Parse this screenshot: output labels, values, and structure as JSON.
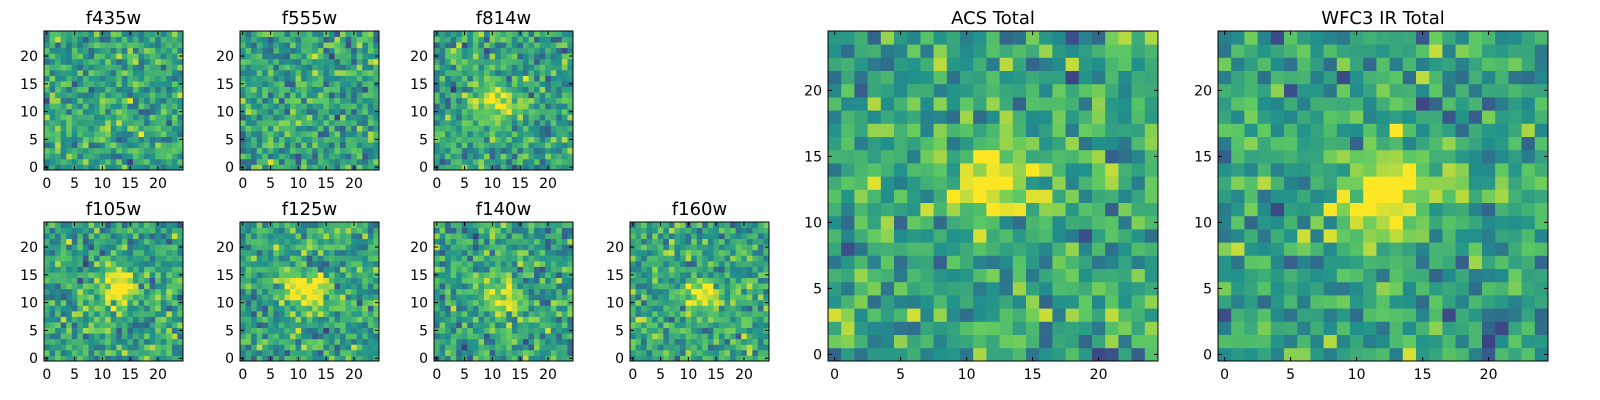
{
  "figure": {
    "colormap": [
      "#440154",
      "#3b528b",
      "#21918c",
      "#5ec962",
      "#fde725"
    ],
    "border_color": "#000000",
    "background": "#ffffff"
  },
  "chart_data": [
    {
      "type": "heatmap",
      "title": "f435w",
      "grid": [
        25,
        25
      ],
      "xlim": [
        0,
        24
      ],
      "ylim": [
        0,
        24
      ],
      "xticks": [
        0,
        5,
        10,
        15,
        20
      ],
      "yticks": [
        0,
        5,
        10,
        15,
        20
      ],
      "source_peak": [
        12,
        12
      ],
      "source_strength": 0.05,
      "seed": 11
    },
    {
      "type": "heatmap",
      "title": "f555w",
      "grid": [
        25,
        25
      ],
      "xlim": [
        0,
        24
      ],
      "ylim": [
        0,
        24
      ],
      "xticks": [
        0,
        5,
        10,
        15,
        20
      ],
      "yticks": [
        0,
        5,
        10,
        15,
        20
      ],
      "source_peak": [
        12,
        12
      ],
      "source_strength": 0.05,
      "seed": 22
    },
    {
      "type": "heatmap",
      "title": "f814w",
      "grid": [
        25,
        25
      ],
      "xlim": [
        0,
        24
      ],
      "ylim": [
        0,
        24
      ],
      "xticks": [
        0,
        5,
        10,
        15,
        20
      ],
      "yticks": [
        0,
        5,
        10,
        15,
        20
      ],
      "source_peak": [
        11,
        12
      ],
      "source_strength": 0.45,
      "seed": 33
    },
    {
      "type": "heatmap",
      "title": "f105w",
      "grid": [
        25,
        25
      ],
      "xlim": [
        0,
        24
      ],
      "ylim": [
        0,
        24
      ],
      "xticks": [
        0,
        5,
        10,
        15,
        20
      ],
      "yticks": [
        0,
        5,
        10,
        15,
        20
      ],
      "source_peak": [
        13,
        13
      ],
      "source_strength": 0.55,
      "seed": 44
    },
    {
      "type": "heatmap",
      "title": "f125w",
      "grid": [
        25,
        25
      ],
      "xlim": [
        0,
        24
      ],
      "ylim": [
        0,
        24
      ],
      "xticks": [
        0,
        5,
        10,
        15,
        20
      ],
      "yticks": [
        0,
        5,
        10,
        15,
        20
      ],
      "source_peak": [
        12,
        12
      ],
      "source_strength": 0.55,
      "seed": 55
    },
    {
      "type": "heatmap",
      "title": "f140w",
      "grid": [
        25,
        25
      ],
      "xlim": [
        0,
        24
      ],
      "ylim": [
        0,
        24
      ],
      "xticks": [
        0,
        5,
        10,
        15,
        20
      ],
      "yticks": [
        0,
        5,
        10,
        15,
        20
      ],
      "source_peak": [
        12,
        11
      ],
      "source_strength": 0.45,
      "seed": 66
    },
    {
      "type": "heatmap",
      "title": "f160w",
      "grid": [
        25,
        25
      ],
      "xlim": [
        0,
        24
      ],
      "ylim": [
        0,
        24
      ],
      "xticks": [
        0,
        5,
        10,
        15,
        20
      ],
      "yticks": [
        0,
        5,
        10,
        15,
        20
      ],
      "source_peak": [
        12,
        12
      ],
      "source_strength": 0.45,
      "seed": 77
    },
    {
      "type": "heatmap",
      "title": "ACS Total",
      "grid": [
        25,
        25
      ],
      "xlim": [
        0,
        24
      ],
      "ylim": [
        0,
        24
      ],
      "xticks": [
        0,
        5,
        10,
        15,
        20
      ],
      "yticks": [
        0,
        5,
        10,
        15,
        20
      ],
      "source_peak": [
        12,
        13
      ],
      "source_strength": 0.5,
      "seed": 88
    },
    {
      "type": "heatmap",
      "title": "WFC3 IR Total",
      "grid": [
        25,
        25
      ],
      "xlim": [
        0,
        24
      ],
      "ylim": [
        0,
        24
      ],
      "xticks": [
        0,
        5,
        10,
        15,
        20
      ],
      "yticks": [
        0,
        5,
        10,
        15,
        20
      ],
      "source_peak": [
        12,
        12
      ],
      "source_strength": 0.6,
      "seed": 99
    }
  ]
}
